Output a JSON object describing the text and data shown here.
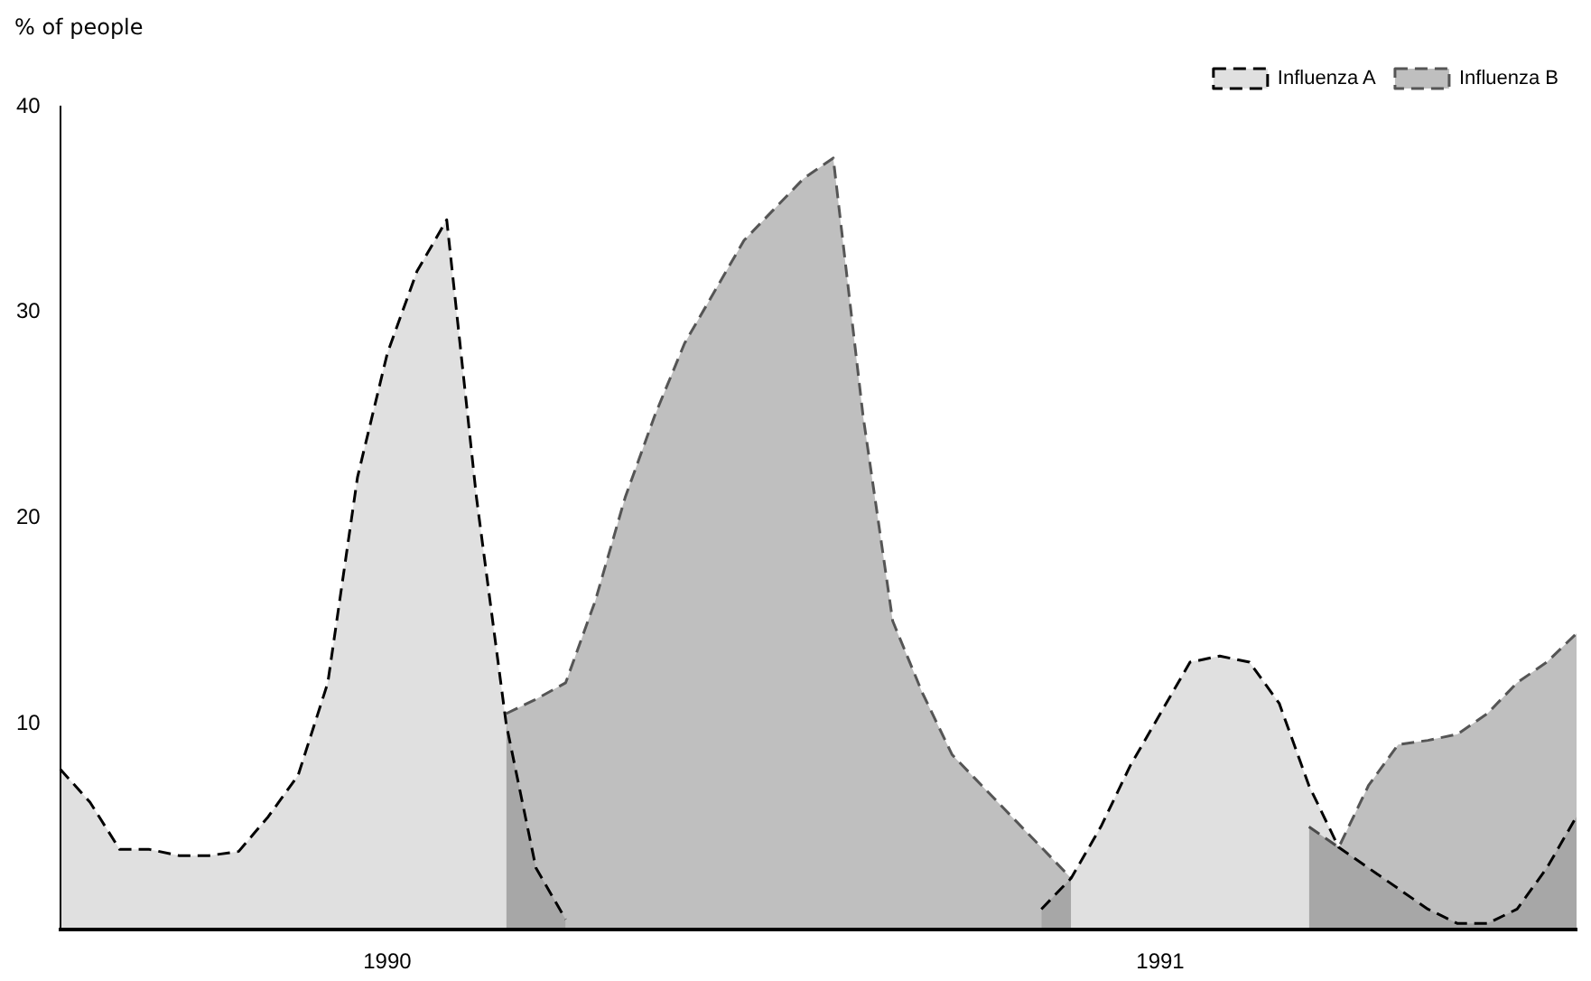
{
  "chart_data": {
    "type": "area",
    "ylabel": "% of people",
    "legend": "top right",
    "grid": false,
    "line_style": "dashed",
    "categories": [
      null,
      null,
      null,
      null,
      null,
      null,
      null,
      null,
      null,
      null,
      null,
      "1990",
      null,
      null,
      null,
      null,
      null,
      null,
      null,
      null,
      null,
      null,
      null,
      null,
      null,
      null,
      null,
      null,
      null,
      null,
      null,
      null,
      null,
      null,
      null,
      null,
      null,
      "1991",
      null,
      null,
      null,
      null,
      null,
      null,
      null,
      null,
      null,
      null,
      null,
      null,
      null,
      null
    ],
    "ylim": [
      0,
      40
    ],
    "yticks": [
      10,
      20,
      30,
      40
    ],
    "series": [
      {
        "name": "Influenza A",
        "color": "#000000",
        "values": [
          7.8,
          6.2,
          3.9,
          3.9,
          3.6,
          3.6,
          3.8,
          5.5,
          7.5,
          12,
          22,
          28,
          32,
          34.5,
          21,
          10,
          3,
          0.5,
          null,
          null,
          null,
          null,
          null,
          null,
          null,
          null,
          null,
          null,
          null,
          null,
          null,
          null,
          null,
          1,
          2.5,
          5,
          8,
          10.5,
          13,
          13.3,
          13,
          11,
          7,
          4,
          3,
          2,
          1,
          0.3,
          0.3,
          1,
          3,
          5.5
        ]
      },
      {
        "name": "Influenza B",
        "color": "#555555",
        "values": [
          null,
          null,
          null,
          null,
          null,
          null,
          null,
          null,
          null,
          null,
          null,
          null,
          null,
          null,
          null,
          10.5,
          11.2,
          12,
          16,
          21,
          25,
          28.5,
          31,
          33.5,
          35,
          36.5,
          37.5,
          25,
          15,
          11.5,
          8.5,
          7,
          5.5,
          4,
          2.5,
          null,
          null,
          null,
          null,
          null,
          null,
          null,
          5,
          4,
          7,
          9,
          9.2,
          9.5,
          10.5,
          12,
          13,
          14.4
        ]
      }
    ]
  }
}
